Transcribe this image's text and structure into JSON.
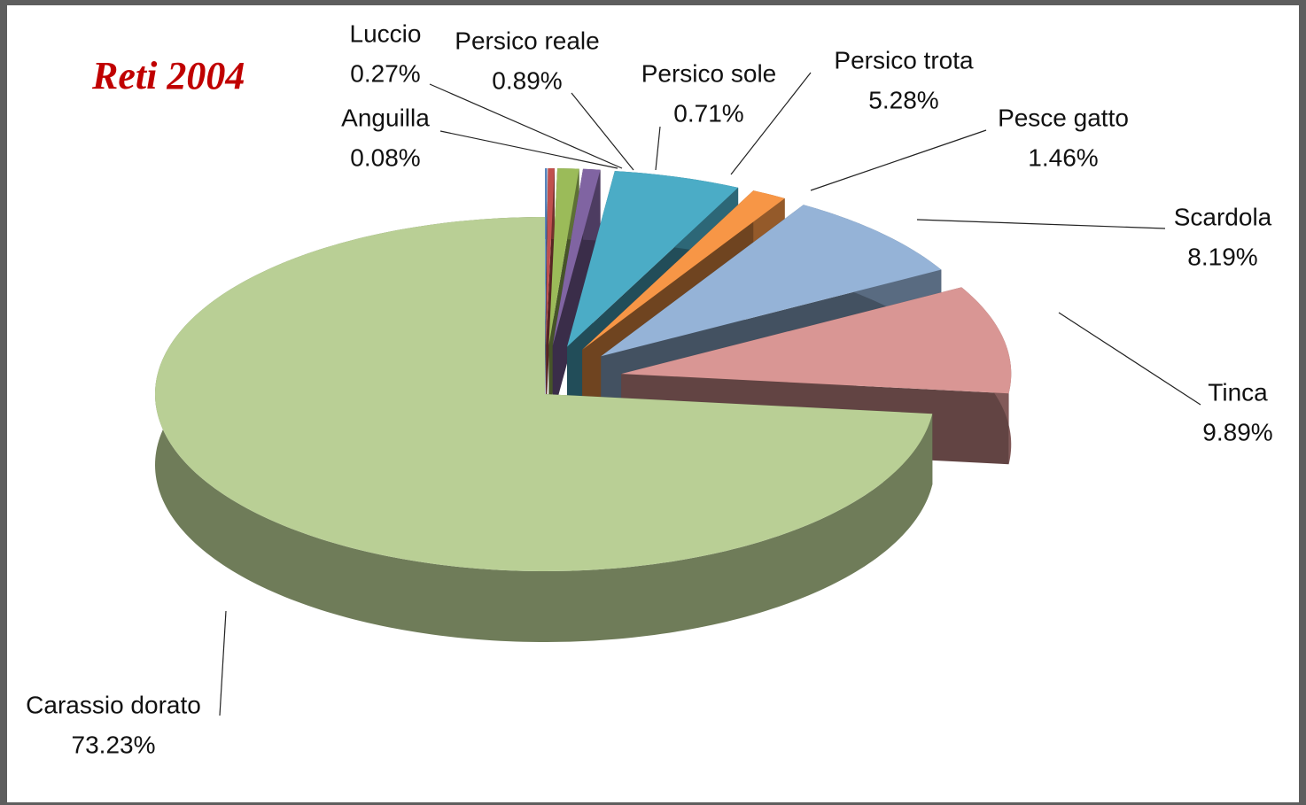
{
  "chart_data": {
    "type": "pie",
    "title": "Reti 2004",
    "categories": [
      "Anguilla",
      "Luccio",
      "Persico reale",
      "Persico sole",
      "Persico trota",
      "Pesce gatto",
      "Scardola",
      "Tinca",
      "Carassio dorato"
    ],
    "values": [
      0.08,
      0.27,
      0.89,
      0.71,
      5.28,
      1.46,
      8.19,
      9.89,
      73.23
    ],
    "value_labels": [
      "0.08%",
      "0.27%",
      "0.89%",
      "0.71%",
      "5.28%",
      "1.46%",
      "8.19%",
      "9.89%",
      "73.23%"
    ],
    "colors": [
      "#4f81bd",
      "#c0504d",
      "#9bbb59",
      "#8064a2",
      "#4bacc6",
      "#f79646",
      "#95b3d7",
      "#d99694",
      "#b9cf95"
    ]
  }
}
